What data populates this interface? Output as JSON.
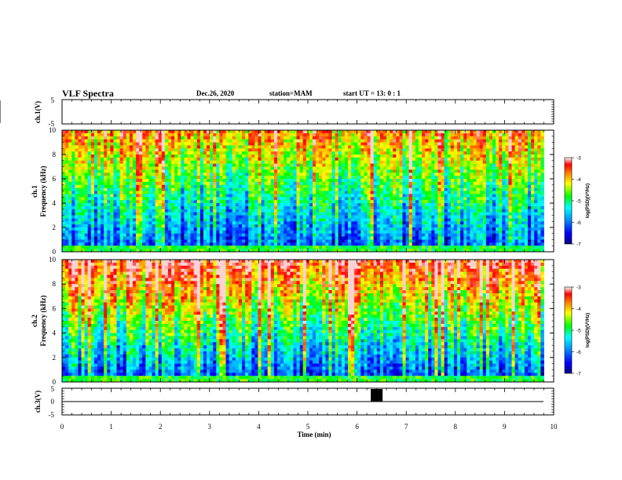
{
  "header": {
    "title": "VLF Spectra",
    "date": "Dec.26, 2020",
    "station": "station=MAM",
    "start": "start  UT  =   13: 0  : 1"
  },
  "chart_data": [
    {
      "type": "line",
      "panel": "ch1-waveform",
      "ylabel": "ch.1(V)",
      "ylim": [
        -5,
        5
      ],
      "yticks": [
        "5",
        "-5"
      ],
      "xlim": [
        0,
        10
      ],
      "description_values": {
        "amplitude_range": [
          -5,
          5
        ],
        "data_end_min": 9.8
      }
    },
    {
      "type": "heatmap",
      "panel": "ch1-spectrogram",
      "ylabel": "ch.1\nFrequency  (kHz)",
      "ylabel_line1": "ch.1",
      "ylabel_line2": "Frequency  (kHz)",
      "ylim": [
        0,
        10
      ],
      "yticks": [
        "0",
        "2",
        "4",
        "6",
        "8",
        "10"
      ],
      "xlim": [
        0,
        10
      ],
      "data_end_min": 9.8,
      "colorbar": {
        "label": "log(PSD)(V²/Hz)",
        "range": [
          -7,
          -3
        ],
        "ticks": [
          "-3",
          "-4",
          "-5",
          "-6",
          "-7"
        ]
      }
    },
    {
      "type": "heatmap",
      "panel": "ch2-spectrogram",
      "ylabel_line1": "ch.2",
      "ylabel_line2": "Frequency  (kHz)",
      "ylim": [
        0,
        10
      ],
      "yticks": [
        "0",
        "2",
        "4",
        "6",
        "8",
        "10"
      ],
      "xlim": [
        0,
        10
      ],
      "data_end_min": 9.8,
      "colorbar": {
        "label": "log(PSD)(V²/Hz)",
        "range": [
          -7,
          -3
        ],
        "ticks": [
          "-3",
          "-4",
          "-5",
          "-6",
          "-7"
        ]
      }
    },
    {
      "type": "line",
      "panel": "ch3-signal",
      "ylabel": "ch.3(V)",
      "ylim": [
        -5,
        5
      ],
      "yticks": [
        "5",
        "0",
        "-5"
      ],
      "baseline_v": 0,
      "pulse": {
        "x_start": 6.28,
        "x_end": 6.52
      },
      "data_end_min": 9.8,
      "xlim": [
        0,
        10
      ],
      "xticks": [
        "0",
        "1",
        "2",
        "3",
        "4",
        "5",
        "6",
        "7",
        "8",
        "9",
        "10"
      ],
      "xlabel": "Time  (min)"
    }
  ]
}
